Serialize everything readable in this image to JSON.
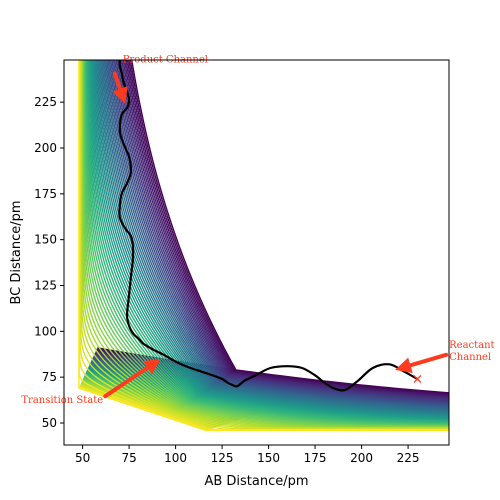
{
  "chart_data": {
    "type": "contour",
    "title": "",
    "xlabel": "AB Distance/pm",
    "ylabel": "BC Distance/pm",
    "xlim": [
      40,
      247
    ],
    "ylim": [
      38,
      248
    ],
    "xticks": [
      50,
      75,
      100,
      125,
      150,
      175,
      200,
      225
    ],
    "yticks": [
      50,
      75,
      100,
      125,
      150,
      175,
      200,
      225
    ],
    "colormap": "viridis",
    "colors": {
      "annotation": "#ff3b1f",
      "trajectory": "#000000",
      "low_contour": "#440154",
      "high_contour": "#fde725"
    },
    "start_marker": {
      "symbol": "×",
      "x": 230,
      "y": 74
    },
    "trajectory": {
      "x": [
        230,
        223,
        215,
        206,
        198,
        191,
        185,
        180,
        175,
        168,
        160,
        151,
        143,
        137,
        133,
        130,
        128,
        125,
        120,
        114,
        108,
        101,
        94,
        88,
        83,
        80,
        77,
        75,
        74,
        74,
        75,
        76,
        77,
        77,
        76,
        73,
        70,
        70,
        71,
        74,
        76,
        75,
        73,
        71,
        70,
        71,
        74,
        75,
        74,
        72,
        71,
        70,
        70
      ],
      "y": [
        74,
        78,
        82,
        80,
        73,
        68,
        69,
        72,
        76,
        80,
        81,
        80,
        76,
        73,
        70,
        71,
        72,
        74,
        76,
        78,
        80,
        83,
        87,
        90,
        93,
        96,
        99,
        103,
        107,
        111,
        120,
        130,
        139,
        147,
        152,
        156,
        162,
        168,
        175,
        181,
        187,
        195,
        200,
        205,
        210,
        218,
        222,
        226,
        230,
        236,
        241,
        245,
        248
      ]
    },
    "annotations": [
      {
        "text": "Product Channel",
        "point_to": [
          73,
          224
        ],
        "text_at": [
          63,
          246
        ]
      },
      {
        "text": "Transition State",
        "point_to": [
          92,
          85
        ],
        "text_at": [
          60,
          63
        ]
      },
      {
        "text": "Reactant Channel",
        "point_to": [
          218,
          79
        ],
        "text_at": [
          246,
          91
        ]
      }
    ]
  }
}
